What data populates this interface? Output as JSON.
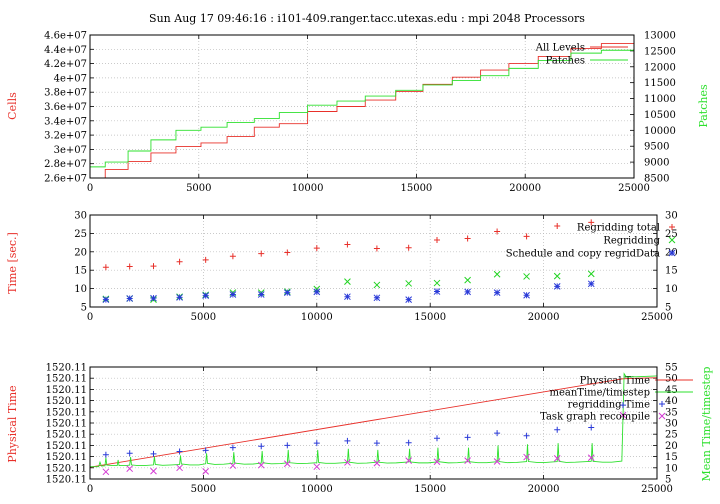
{
  "title": "Sun Aug 17 09:46:16 : i101-409.ranger.tacc.utexas.edu : mpi 2048 Processors",
  "colors": {
    "red": "#e8302a",
    "green": "#2ee02e",
    "blue": "#2a3ad8",
    "cross_green": "#21d321",
    "magenta": "#d43ad4",
    "grid": "#b8b8b8"
  },
  "chart_data": [
    {
      "type": "line",
      "ylabel": "Cells",
      "y2label": "Patches",
      "xlim": [
        0,
        25000
      ],
      "ylim": [
        26000000,
        46000000
      ],
      "y2lim": [
        8500,
        13000
      ],
      "xticks": [
        "0",
        "5000",
        "10000",
        "15000",
        "20000",
        "25000"
      ],
      "yticks": [
        "2.6e+07",
        "2.8e+07",
        "3e+07",
        "3.2e+07",
        "3.4e+07",
        "3.6e+07",
        "3.8e+07",
        "4e+07",
        "4.2e+07",
        "4.4e+07",
        "4.6e+07"
      ],
      "y2ticks": [
        "8500",
        "9000",
        "9500",
        "10000",
        "10500",
        "11000",
        "11500",
        "12000",
        "12500",
        "13000"
      ],
      "legend_position": "top-right",
      "series": [
        {
          "name": "All Levels",
          "color_key": "red",
          "x": [
            0,
            700,
            1750,
            2800,
            3950,
            5100,
            6300,
            7550,
            8700,
            10000,
            11350,
            12650,
            14050,
            15300,
            16650,
            17950,
            19250,
            20600,
            22100,
            23500
          ],
          "y": [
            26000000,
            27200000,
            28300000,
            29500000,
            30400000,
            30900000,
            31800000,
            33100000,
            33600000,
            35300000,
            36000000,
            36900000,
            38100000,
            39100000,
            40100000,
            41100000,
            42000000,
            43000000,
            44100000,
            44800000
          ]
        },
        {
          "name": "Patches",
          "color_key": "green",
          "axis": "y2",
          "x": [
            0,
            700,
            1750,
            2800,
            3950,
            5100,
            6300,
            7550,
            8700,
            10000,
            11350,
            12650,
            14050,
            15300,
            16650,
            17950,
            19250,
            20600,
            22100,
            23500
          ],
          "y": [
            8850,
            9000,
            9350,
            9700,
            10000,
            10100,
            10250,
            10370,
            10560,
            10790,
            10920,
            11080,
            11260,
            11430,
            11570,
            11720,
            11950,
            12200,
            12430,
            12520
          ]
        }
      ]
    },
    {
      "type": "scatter",
      "ylabel": "Time [sec.]",
      "xlim": [
        0,
        25000
      ],
      "ylim": [
        5,
        30
      ],
      "xticks": [
        "0",
        "5000",
        "10000",
        "15000",
        "20000",
        "25000"
      ],
      "yticks": [
        "5",
        "10",
        "15",
        "20",
        "25",
        "30"
      ],
      "y2ticks": [
        "5",
        "10",
        "15",
        "20",
        "25",
        "30"
      ],
      "legend_position": "top-right",
      "series": [
        {
          "name": "Regridding total",
          "color_key": "red",
          "marker": "plus",
          "x": [
            700,
            1750,
            2800,
            3950,
            5100,
            6300,
            7550,
            8700,
            10000,
            11350,
            12650,
            14050,
            15300,
            16650,
            17950,
            19250,
            20600,
            22100
          ],
          "y": [
            15.8,
            16.0,
            16.1,
            17.3,
            17.8,
            18.8,
            19.5,
            19.8,
            21.0,
            22.0,
            20.9,
            21.1,
            23.2,
            23.6,
            25.5,
            24.2,
            27.0,
            28.0
          ]
        },
        {
          "name": "Regridding",
          "color_key": "cross_green",
          "marker": "cross",
          "x": [
            700,
            1750,
            2800,
            3950,
            5100,
            6300,
            7550,
            8700,
            10000,
            11350,
            12650,
            14050,
            15300,
            16650,
            17950,
            19250,
            20600,
            22100
          ],
          "y": [
            7.2,
            7.3,
            7.0,
            7.8,
            8.3,
            8.9,
            8.9,
            9.2,
            9.9,
            11.9,
            11.0,
            11.4,
            11.5,
            12.3,
            13.9,
            13.3,
            13.4,
            14.0
          ]
        },
        {
          "name": "Schedule and copy regridData",
          "color_key": "blue",
          "marker": "star",
          "x": [
            700,
            1750,
            2800,
            3950,
            5100,
            6300,
            7550,
            8700,
            10000,
            11350,
            12650,
            14050,
            15300,
            16650,
            17950,
            19250,
            20600,
            22100
          ],
          "y": [
            7.0,
            7.3,
            7.4,
            7.6,
            8.1,
            8.4,
            8.4,
            8.9,
            9.1,
            7.8,
            7.5,
            7.0,
            9.2,
            9.1,
            8.9,
            8.2,
            10.6,
            11.3
          ]
        }
      ]
    },
    {
      "type": "line",
      "ylabel": "Physical Time",
      "y2label": "Mean Time/timestep",
      "xlim": [
        0,
        25000
      ],
      "ylim": [
        0,
        10
      ],
      "y2lim": [
        5,
        55
      ],
      "xticks": [
        "0",
        "5000",
        "10000",
        "15000",
        "20000",
        "25000"
      ],
      "yticks": [
        "1520.11",
        "1520.11",
        "1520.11",
        "1520.11",
        "1520.11",
        "1520.11",
        "1520.11",
        "1520.11",
        "1520.11",
        "1520.11",
        "1520.11"
      ],
      "y2ticks": [
        "5",
        "10",
        "15",
        "20",
        "25",
        "30",
        "35",
        "40",
        "45",
        "50",
        "55"
      ],
      "legend_position": "top-right",
      "series": [
        {
          "name": "Physical Time",
          "color_key": "red",
          "x": [
            0,
            23500,
            25000
          ],
          "y": [
            1.05,
            8.95,
            9.05
          ]
        },
        {
          "name": "meanTime/timestep",
          "color_key": "green",
          "axis": "y2",
          "x": [
            0,
            380,
            440,
            500,
            660,
            700,
            740,
            1000,
            1200,
            1240,
            1280,
            1600,
            1750,
            1790,
            1830,
            2100,
            2400,
            2800,
            2840,
            2880,
            3200,
            3600,
            3950,
            3990,
            4030,
            4400,
            4800,
            5100,
            5140,
            5180,
            5500,
            5900,
            6300,
            6340,
            6380,
            6800,
            7200,
            7550,
            7590,
            7630,
            8000,
            8400,
            8700,
            8740,
            8780,
            9200,
            9600,
            10000,
            10040,
            10080,
            10400,
            10800,
            11350,
            11390,
            11430,
            11800,
            12200,
            12650,
            12690,
            12730,
            13100,
            13500,
            14050,
            14090,
            14130,
            14500,
            14900,
            15300,
            15340,
            15380,
            15800,
            16200,
            16650,
            16690,
            16730,
            17100,
            17500,
            17950,
            17990,
            18030,
            18400,
            18800,
            19250,
            19290,
            19330,
            19700,
            20100,
            20600,
            20640,
            20680,
            21000,
            21400,
            22100,
            22140,
            22180,
            22600,
            23000,
            23450,
            23550,
            23650,
            25000
          ],
          "y": [
            10.5,
            10.5,
            12.5,
            10.8,
            10.9,
            14.5,
            11.2,
            11.0,
            11.0,
            13.5,
            11.0,
            11.0,
            11.2,
            14.8,
            11.3,
            11.0,
            11.0,
            11.3,
            15.0,
            11.5,
            11.1,
            11.3,
            11.5,
            15.5,
            11.7,
            11.3,
            11.3,
            11.8,
            16.5,
            12.0,
            11.5,
            11.6,
            12.0,
            17.0,
            12.1,
            11.6,
            11.7,
            12.1,
            17.5,
            12.2,
            11.8,
            11.9,
            12.2,
            18.0,
            12.3,
            11.9,
            12.0,
            12.3,
            18.0,
            12.4,
            12.0,
            12.0,
            12.4,
            18.5,
            12.5,
            12.0,
            12.1,
            12.5,
            18.0,
            12.5,
            12.1,
            12.2,
            12.6,
            18.5,
            12.6,
            12.2,
            12.2,
            12.6,
            19.0,
            12.7,
            12.2,
            12.3,
            12.7,
            19.0,
            12.7,
            12.3,
            12.3,
            12.7,
            20.0,
            12.8,
            12.3,
            12.4,
            12.8,
            20.5,
            12.8,
            12.4,
            12.4,
            12.8,
            21.0,
            12.9,
            12.4,
            12.5,
            12.9,
            21.0,
            12.9,
            12.5,
            12.5,
            13.0,
            52.0,
            50.5,
            51.0
          ]
        },
        {
          "name": "regridding Time",
          "color_key": "blue",
          "marker": "plus",
          "axis": "y2",
          "x": [
            700,
            1750,
            2800,
            3950,
            5100,
            6300,
            7550,
            8700,
            10000,
            11350,
            12650,
            14050,
            15300,
            16650,
            17950,
            19250,
            20600,
            22100,
            23500
          ],
          "y": [
            15.8,
            16.5,
            16.2,
            17.3,
            17.8,
            19.0,
            19.6,
            20.0,
            21.0,
            22.0,
            21.0,
            21.2,
            23.2,
            23.6,
            25.5,
            24.3,
            27.0,
            28.0,
            38.0
          ]
        },
        {
          "name": "Task graph recompile",
          "color_key": "magenta",
          "marker": "cross",
          "axis": "y2",
          "x": [
            700,
            1750,
            2800,
            3950,
            5100,
            6300,
            7550,
            8700,
            10000,
            11350,
            12650,
            14050,
            15300,
            16650,
            17950,
            19250,
            20600,
            22100,
            23500
          ],
          "y": [
            8.2,
            9.6,
            8.5,
            10.0,
            8.4,
            11.0,
            11.2,
            11.8,
            10.5,
            12.4,
            12.1,
            13.2,
            12.7,
            13.2,
            12.8,
            14.8,
            14.2,
            14.5,
            33.5
          ]
        }
      ]
    }
  ]
}
